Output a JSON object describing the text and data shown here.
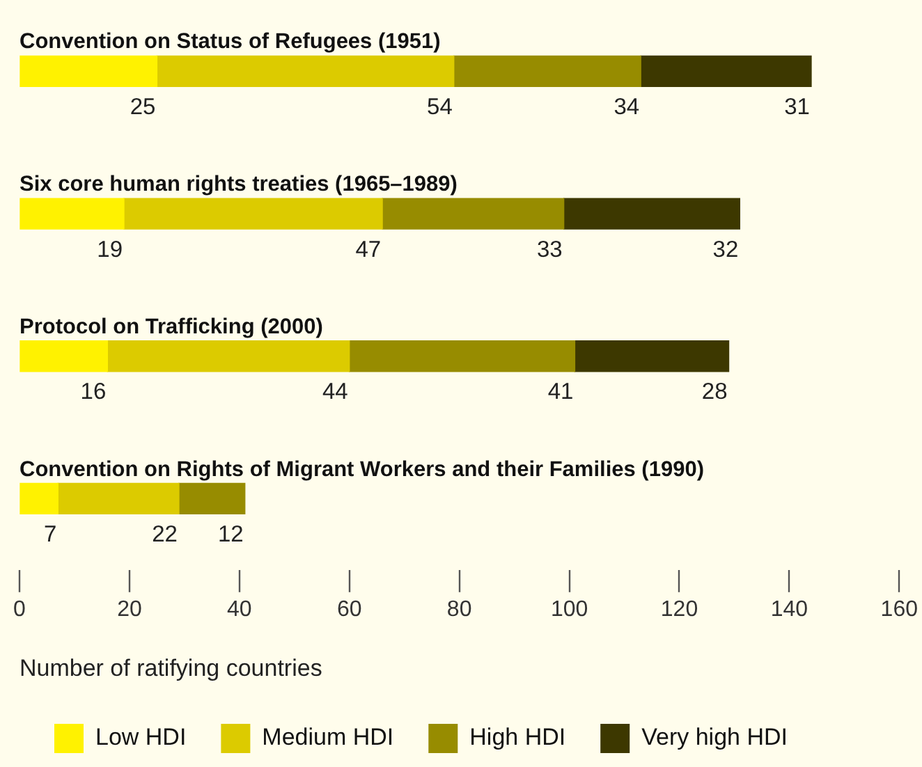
{
  "chart_data": {
    "type": "bar",
    "orientation": "horizontal",
    "stacked": true,
    "categories": [
      "Convention on Status of Refugees (1951)",
      "Six core human rights treaties (1965–1989)",
      "Protocol on Trafficking (2000)",
      "Convention on Rights of Migrant Workers and their Families (1990)"
    ],
    "series": [
      {
        "name": "Low HDI",
        "color": "#fff200",
        "values": [
          25,
          19,
          16,
          7
        ]
      },
      {
        "name": "Medium HDI",
        "color": "#dccb00",
        "values": [
          54,
          47,
          44,
          22
        ]
      },
      {
        "name": "High HDI",
        "color": "#978c00",
        "values": [
          34,
          33,
          41,
          12
        ]
      },
      {
        "name": "Very high HDI",
        "color": "#3d3800",
        "values": [
          31,
          32,
          28,
          null
        ]
      }
    ],
    "xlabel": "Number of ratifying countries",
    "xlim": [
      0,
      160
    ],
    "xticks": [
      0,
      20,
      40,
      60,
      80,
      100,
      120,
      140,
      160
    ],
    "data_labels": true,
    "grid": false,
    "legend": "bottom"
  }
}
